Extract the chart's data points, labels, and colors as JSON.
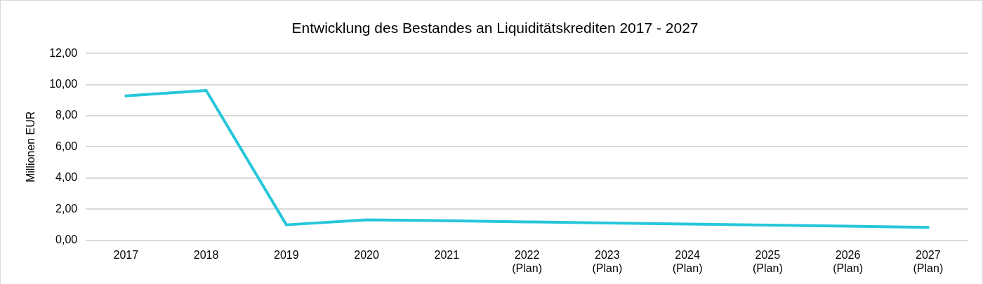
{
  "chart_data": {
    "type": "line",
    "title": "Entwicklung des Bestandes an Liquiditätskrediten 2017 - 2027",
    "ylabel": "Millionen EUR",
    "categories": [
      "2017",
      "2018",
      "2019",
      "2020",
      "2021",
      "2022\n(Plan)",
      "2023\n(Plan)",
      "2024\n(Plan)",
      "2025\n(Plan)",
      "2026\n(Plan)",
      "2027\n(Plan)"
    ],
    "series": [
      {
        "color": "#26c6da",
        "values": [
          9.27,
          9.62,
          0.99,
          1.31,
          1.25,
          1.18,
          1.11,
          1.04,
          0.97,
          0.9,
          0.83
        ]
      }
    ],
    "ylim": [
      0,
      12
    ],
    "yticks": [
      {
        "value": 0,
        "label": "0,00"
      },
      {
        "value": 2,
        "label": "2,00"
      },
      {
        "value": 4,
        "label": "4,00"
      },
      {
        "value": 6,
        "label": "6,00"
      },
      {
        "value": 8,
        "label": "8,00"
      },
      {
        "value": 10,
        "label": "10,00"
      },
      {
        "value": 12,
        "label": "12,00"
      }
    ],
    "grid": "y",
    "legend": false,
    "marker": "none",
    "line_style": "solid"
  }
}
